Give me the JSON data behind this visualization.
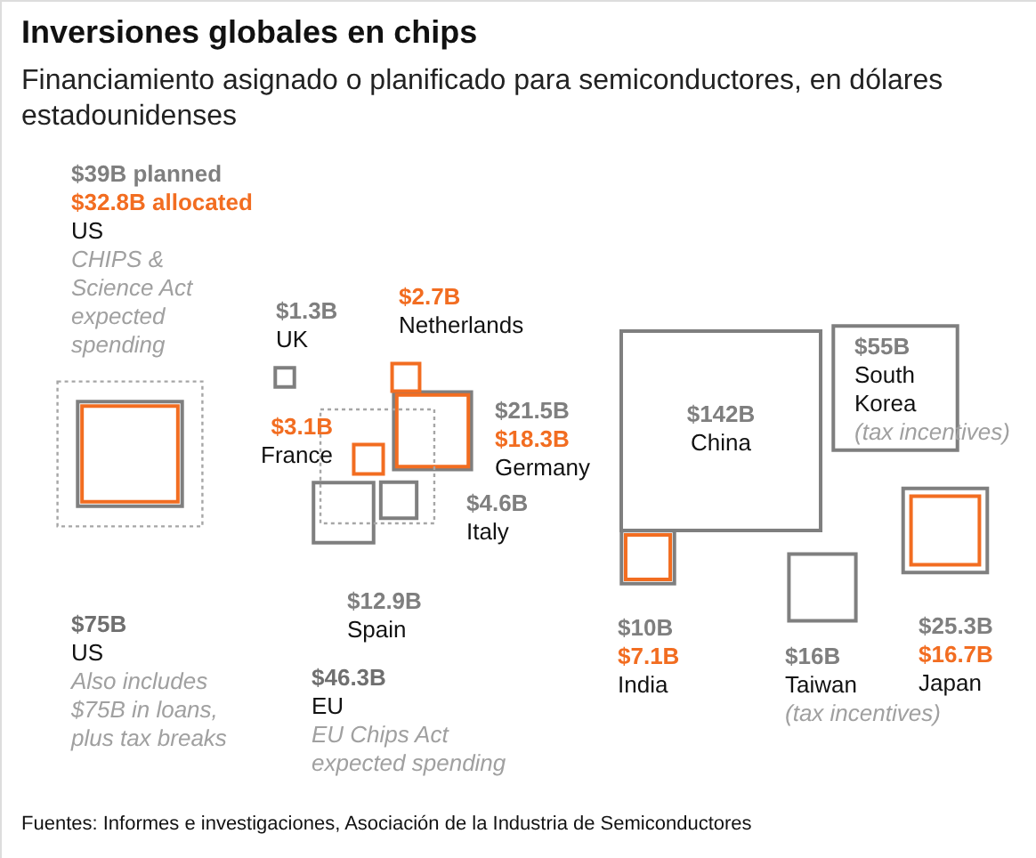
{
  "chart_data": {
    "type": "other",
    "title": "Inversiones globales en chips",
    "subtitle": "Financiamiento asignado o planificado para semiconductores, en dólares estadounidenses",
    "categories": [
      "US",
      "UK",
      "Netherlands",
      "France",
      "Germany",
      "Italy",
      "Spain",
      "EU",
      "China",
      "South Korea",
      "India",
      "Taiwan",
      "Japan"
    ],
    "series": [
      {
        "color": "#7f7f7f",
        "values": [
          39,
          1.3,
          null,
          null,
          21.5,
          4.6,
          12.9,
          null,
          142,
          55,
          10,
          16,
          25.3
        ],
        "value_labels": [
          "$39B planned",
          "$1.3B",
          null,
          null,
          "$21.5B",
          "$4.6B",
          "$12.9B",
          null,
          "$142B",
          "$55B",
          "$10B",
          "$16B",
          "$25.3B"
        ]
      },
      {
        "color": "#f26d21",
        "values": [
          32.8,
          null,
          2.7,
          3.1,
          18.3,
          null,
          null,
          null,
          null,
          null,
          7.1,
          null,
          16.7
        ],
        "value_labels": [
          "$32.8B allocated",
          null,
          "$2.7B",
          "$3.1B",
          "$18.3B",
          null,
          null,
          null,
          null,
          null,
          "$7.1B",
          null,
          "$16.7B"
        ]
      },
      {
        "color": "#a6a6a6",
        "line_style": "dashed",
        "values": [
          75,
          null,
          null,
          null,
          null,
          null,
          null,
          46.3,
          null,
          null,
          null,
          null,
          null
        ],
        "value_labels": [
          "$75B",
          null,
          null,
          null,
          null,
          null,
          null,
          "$46.3B",
          null,
          null,
          null,
          null,
          null
        ]
      }
    ],
    "annotations": [
      "CHIPS & Science Act expected spending",
      "Also includes $75B in loans, plus tax breaks",
      "EU Chips Act expected spending",
      "(tax incentives)",
      "(tax incentives)",
      "Fuentes: Informes e investigaciones, Asociación de la Industria de Semiconductores"
    ]
  }
}
